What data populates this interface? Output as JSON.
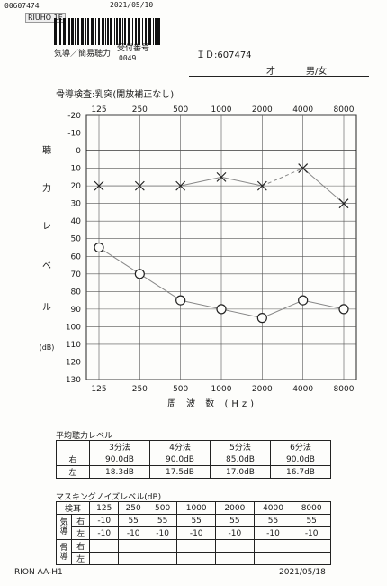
{
  "header": {
    "stamp_code": "00607474",
    "stamp_date": "2021/05/10",
    "stamp_name": "RIUHO 1E",
    "dept_label": "気導／簡易聴力",
    "receipt_label": "受付番号",
    "receipt_number": "0049",
    "id_label": "ＩＤ:607474",
    "age_label": "才",
    "sex_label": "男/女"
  },
  "chart_data": {
    "type": "line",
    "title": "骨導検査:乳突(開放補正なし)",
    "categories": [
      "125",
      "250",
      "500",
      "1000",
      "2000",
      "4000",
      "8000"
    ],
    "xlabel": "周 波 数 (Hz)",
    "ylabel": "聴 力 レ ベ ル",
    "ylabel_chars": [
      "聴",
      "力",
      "レ",
      "ベ",
      "ル"
    ],
    "yunit": "(dB)",
    "ylim": [
      -20,
      130
    ],
    "yticks": [
      -20,
      -10,
      0,
      10,
      20,
      30,
      40,
      50,
      60,
      70,
      80,
      90,
      100,
      110,
      120,
      130
    ],
    "y_reversed": true,
    "grid": true,
    "series": [
      {
        "name": "",
        "marker": "x",
        "values": [
          20,
          20,
          20,
          15,
          20,
          10,
          30
        ],
        "dashed_segments": [
          [
            4,
            5
          ]
        ]
      },
      {
        "name": "",
        "marker": "o",
        "values": [
          55,
          70,
          85,
          90,
          95,
          85,
          90
        ]
      }
    ]
  },
  "average": {
    "title": "平均聴力レベル",
    "headers": [
      "",
      "3分法",
      "4分法",
      "5分法",
      "6分法"
    ],
    "rows": [
      {
        "side": "右",
        "values": [
          "90.0dB",
          "90.0dB",
          "85.0dB",
          "90.0dB"
        ]
      },
      {
        "side": "左",
        "values": [
          "18.3dB",
          "17.5dB",
          "17.0dB",
          "16.7dB"
        ]
      }
    ]
  },
  "masking": {
    "title": "マスキングノイズレベル(dB)",
    "freq_header": "検耳",
    "freqs": [
      "125",
      "250",
      "500",
      "1000",
      "2000",
      "4000",
      "8000"
    ],
    "group_air": "気導",
    "group_bone": "骨導",
    "rows": [
      {
        "side": "右",
        "values": [
          "-10",
          "55",
          "55",
          "55",
          "55",
          "55",
          "55"
        ]
      },
      {
        "side": "左",
        "values": [
          "-10",
          "-10",
          "-10",
          "-10",
          "-10",
          "-10",
          "-10"
        ]
      },
      {
        "side": "右",
        "values": [
          "",
          "",
          "",
          "",
          "",
          "",
          ""
        ]
      },
      {
        "side": "左",
        "values": [
          "",
          "",
          "",
          "",
          "",
          "",
          ""
        ]
      }
    ]
  },
  "footer": {
    "device": "RION AA-H1",
    "date": "2021/05/18"
  },
  "colors": {
    "ink": "#1a1a1a",
    "line": "#888888"
  }
}
